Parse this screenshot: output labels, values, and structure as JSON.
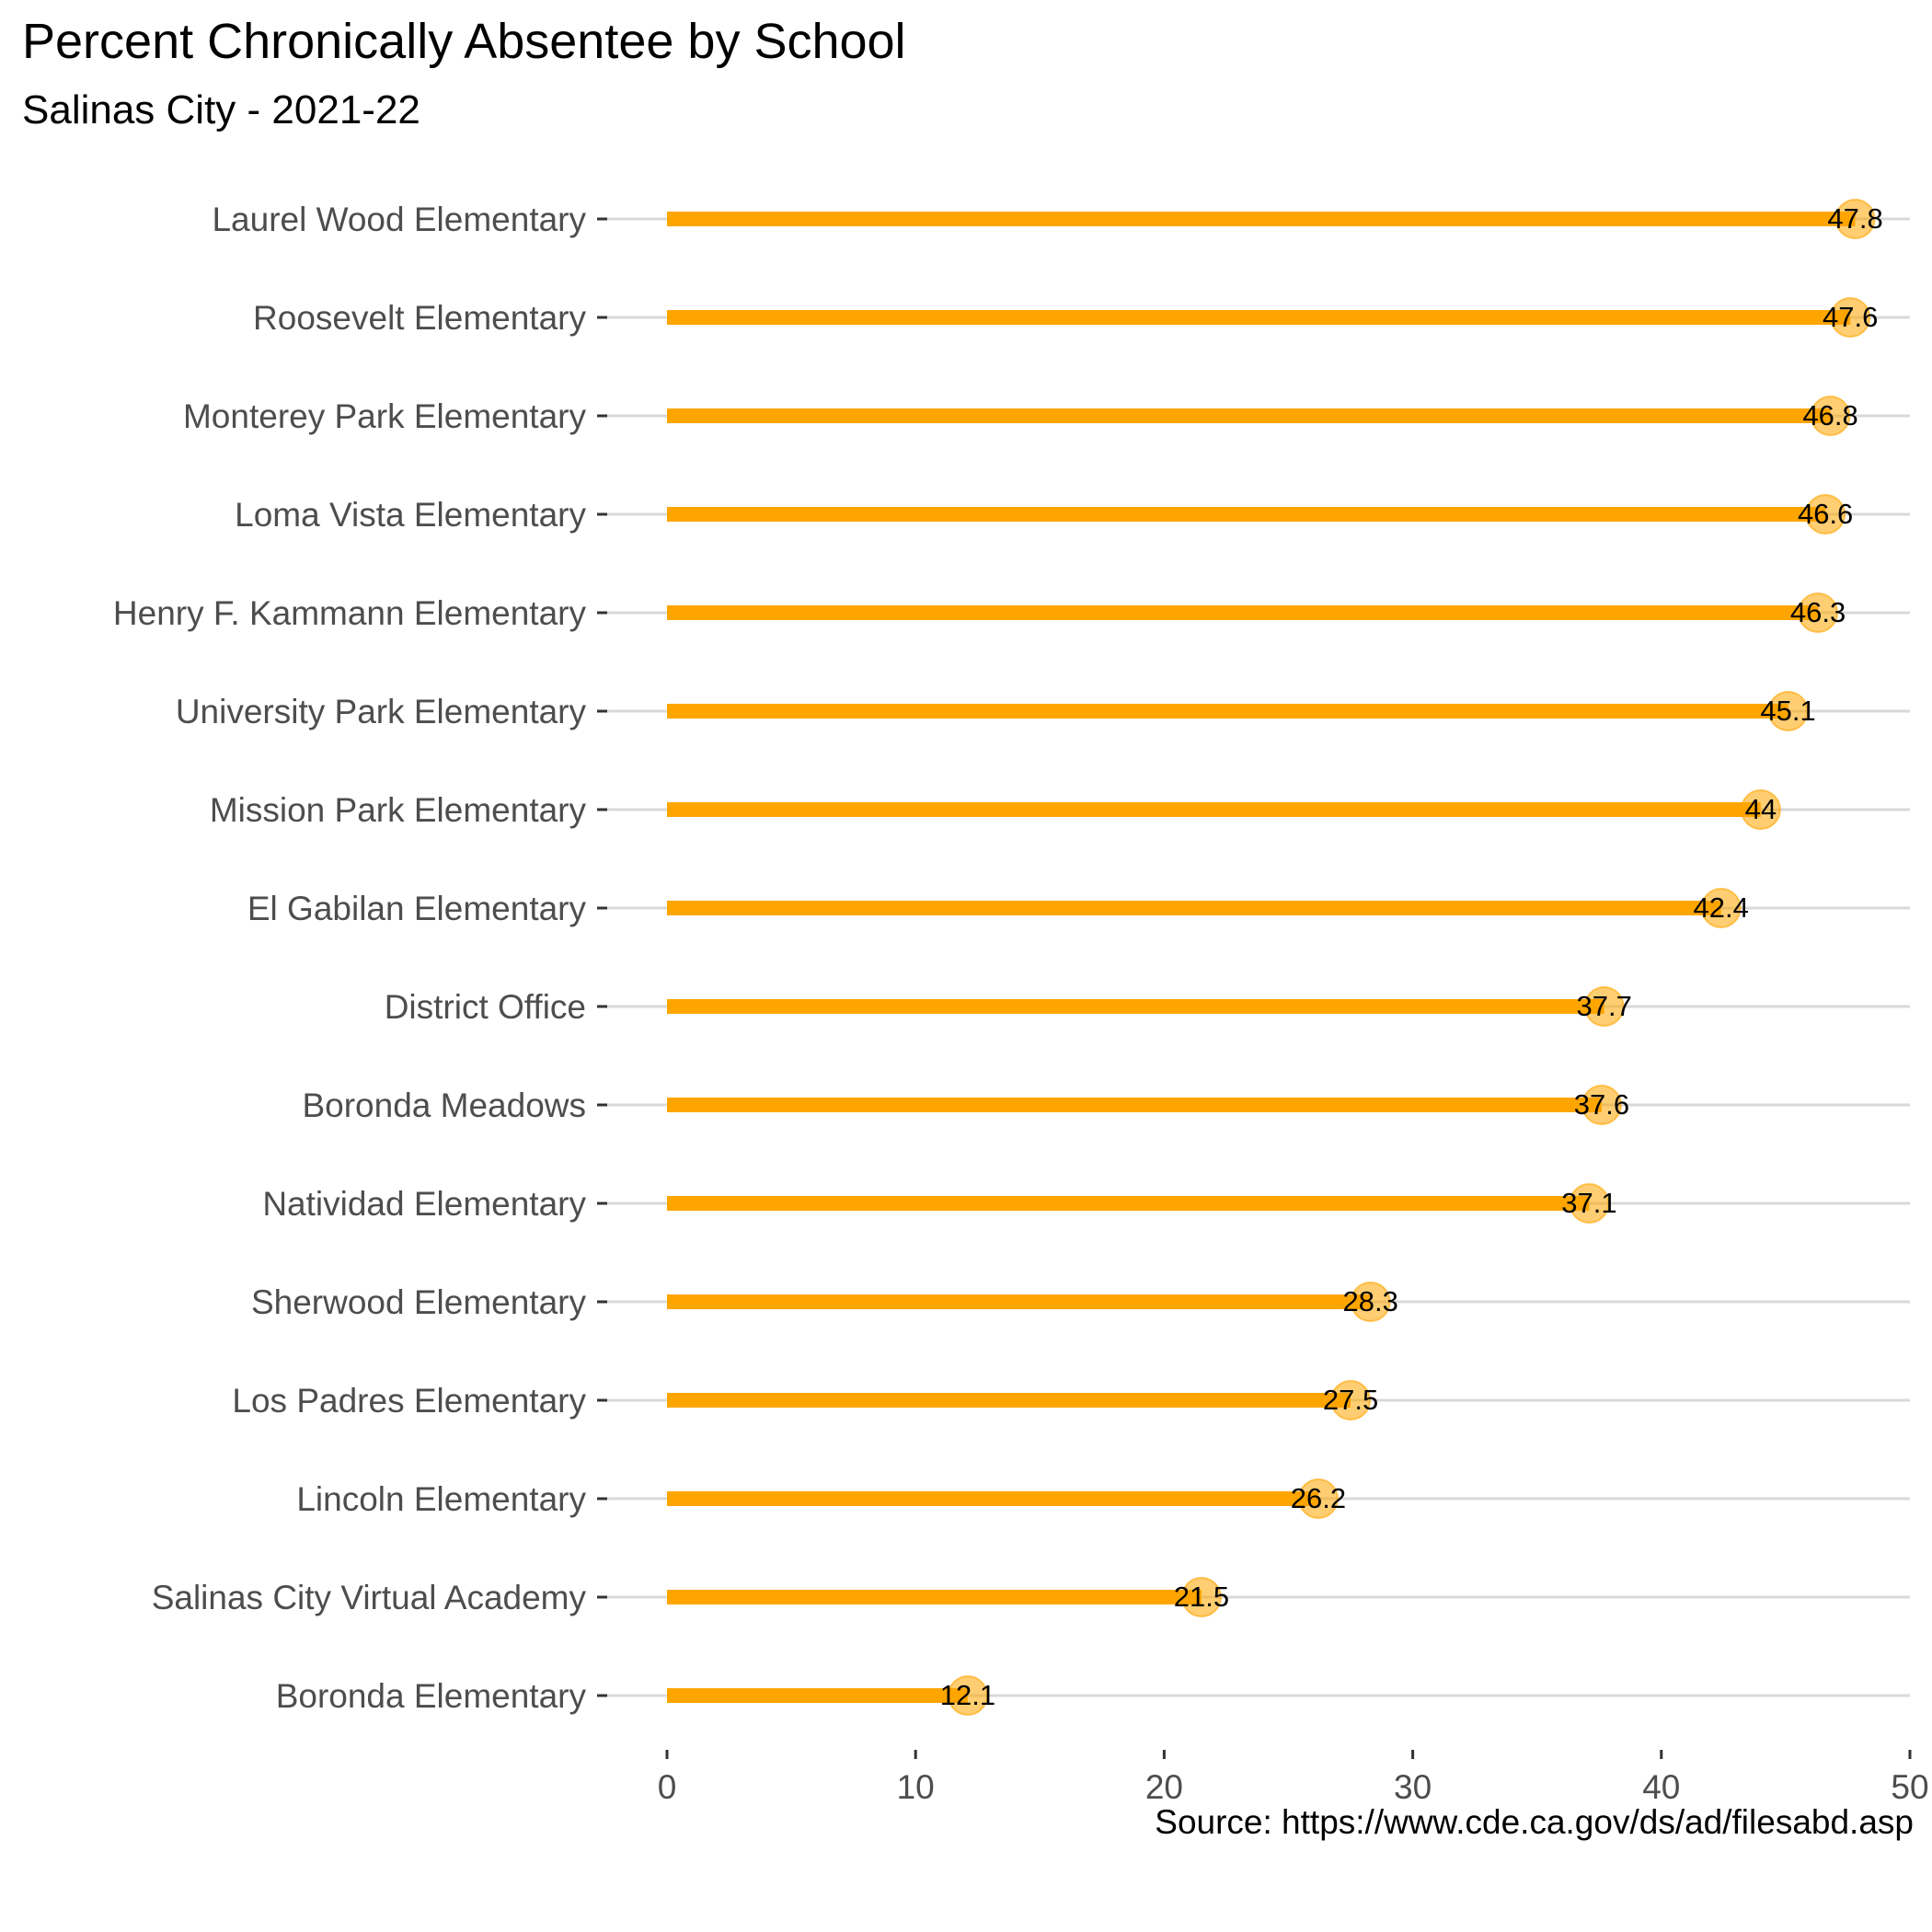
{
  "chart_data": {
    "type": "bar",
    "orientation": "horizontal",
    "style": "lollipop",
    "title": "Percent Chronically Absentee by School",
    "subtitle": "Salinas City - 2021-22",
    "caption": "Source: https://www.cde.ca.gov/ds/ad/filesabd.asp",
    "xlabel": "",
    "ylabel": "",
    "xlim": [
      0,
      50
    ],
    "x_ticks": [
      0,
      10,
      20,
      30,
      40,
      50
    ],
    "grid": "horizontal lines at each category",
    "colors": {
      "bar": "#FFA500",
      "point": "#FFA500",
      "grid": "#D9D9D9",
      "label": "#000000"
    },
    "categories": [
      "Laurel Wood Elementary",
      "Roosevelt Elementary",
      "Monterey Park Elementary",
      "Loma Vista Elementary",
      "Henry F. Kammann Elementary",
      "University Park Elementary",
      "Mission Park Elementary",
      "El Gabilan Elementary",
      "District Office",
      "Boronda Meadows",
      "Natividad Elementary",
      "Sherwood Elementary",
      "Los Padres Elementary",
      "Lincoln Elementary",
      "Salinas City Virtual Academy",
      "Boronda Elementary"
    ],
    "values": [
      47.8,
      47.6,
      46.8,
      46.6,
      46.3,
      45.1,
      44,
      42.4,
      37.7,
      37.6,
      37.1,
      28.3,
      27.5,
      26.2,
      21.5,
      12.1
    ],
    "data_labels": [
      "47.8",
      "47.6",
      "46.8",
      "46.6",
      "46.3",
      "45.1",
      "44",
      "42.4",
      "37.7",
      "37.6",
      "37.1",
      "28.3",
      "27.5",
      "26.2",
      "21.5",
      "12.1"
    ]
  }
}
